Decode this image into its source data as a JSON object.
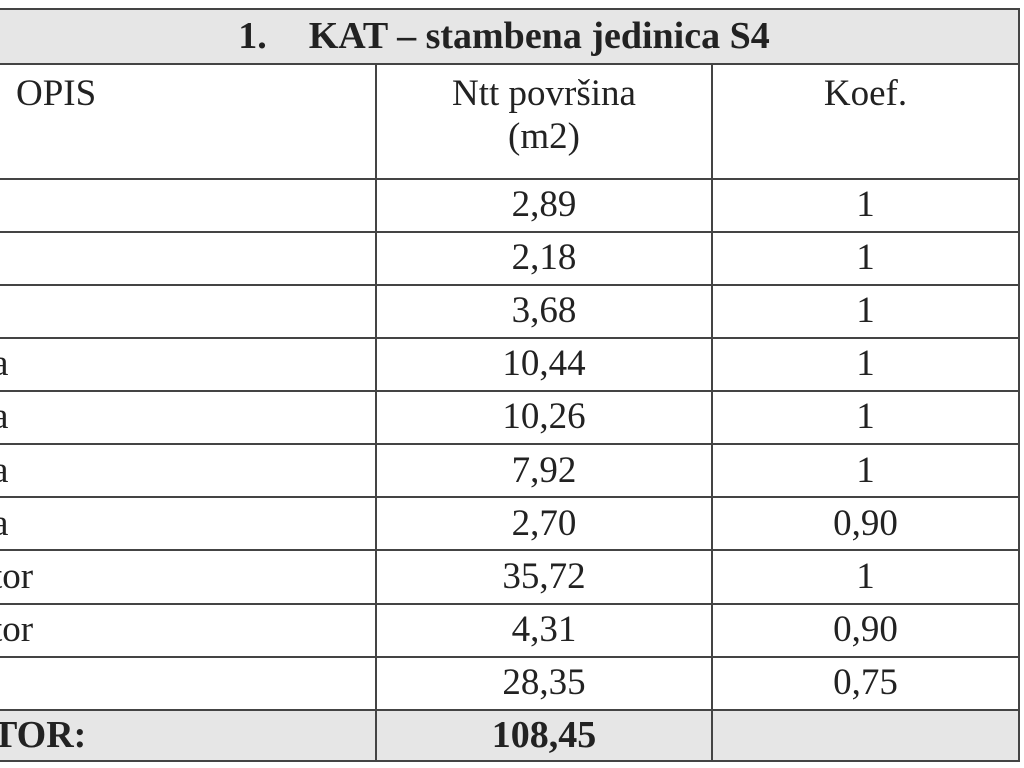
{
  "table": {
    "title": {
      "number": "1.",
      "text": "KAT – stambena jedinica S4"
    },
    "headers": {
      "description": "OPIS",
      "area": "Ntt površina (m2)",
      "coefficient": "Koef."
    },
    "rows": [
      {
        "description": "",
        "area": "2,89",
        "coefficient": "1"
      },
      {
        "description": "",
        "area": "2,18",
        "coefficient": "1"
      },
      {
        "description": "",
        "area": "3,68",
        "coefficient": "1"
      },
      {
        "description": "a",
        "area": "10,44",
        "coefficient": "1"
      },
      {
        "description": "a",
        "area": "10,26",
        "coefficient": "1"
      },
      {
        "description": "a",
        "area": "7,92",
        "coefficient": "1"
      },
      {
        "description": "a",
        "area": "2,70",
        "coefficient": "0,90"
      },
      {
        "description": "tor",
        "area": "35,72",
        "coefficient": "1"
      },
      {
        "description": "tor",
        "area": "4,31",
        "coefficient": "0,90"
      },
      {
        "description": "",
        "area": "28,35",
        "coefficient": "0,75"
      }
    ],
    "total": {
      "label": "TOR:",
      "value": "108,45"
    }
  }
}
